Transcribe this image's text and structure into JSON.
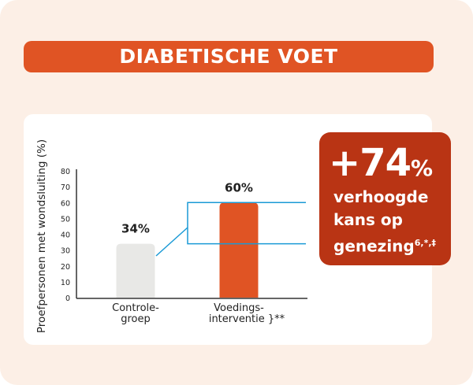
{
  "title": "DIABETISCHE VOET",
  "callout": {
    "value": "+74",
    "unit": "%",
    "lines": [
      "verhoogde",
      "kans op",
      "genezing"
    ],
    "footnote": "6,*,‡"
  },
  "colors": {
    "accent": "#e05424",
    "callout": "#b93414",
    "control": "#e8e8e6",
    "bracket": "#1a9ad6",
    "background": "#fcefe6"
  },
  "chart_data": {
    "type": "bar",
    "ylabel": "Proefpersonen met wondsluiting (%)",
    "ylim": [
      0,
      80
    ],
    "yticks": [
      "0",
      "10",
      "20",
      "30",
      "40",
      "50",
      "60",
      "70",
      "80"
    ],
    "categories": [
      "Controle-\ngroep",
      "Voedings-\ninterventie }**"
    ],
    "category_lines": [
      [
        "Controle-",
        "groep"
      ],
      [
        "Voedings-",
        "interventie }**"
      ]
    ],
    "values": [
      34,
      60
    ],
    "data_labels": [
      "34%",
      "60%"
    ],
    "bar_colors": [
      "#e8e8e6",
      "#e05424"
    ]
  }
}
